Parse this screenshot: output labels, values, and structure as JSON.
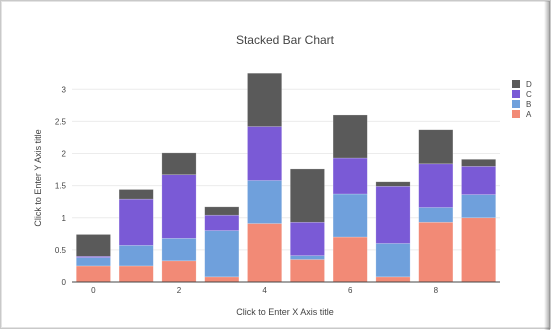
{
  "chart_data": {
    "type": "bar",
    "stacked": true,
    "title": "Stacked Bar Chart",
    "xlabel": "Click to Enter X Axis title",
    "ylabel": "Click to Enter Y Axis title",
    "x": [
      0,
      1,
      2,
      3,
      4,
      5,
      6,
      7,
      8,
      9
    ],
    "x_ticks": [
      0,
      2,
      4,
      6,
      8
    ],
    "y_ticks": [
      0,
      0.5,
      1,
      1.5,
      2,
      2.5,
      3
    ],
    "xlim": [
      -0.5,
      9.5
    ],
    "ylim": [
      0,
      3.3
    ],
    "grid": true,
    "legend": "top-right",
    "series": [
      {
        "name": "A",
        "color": "#f28a76",
        "values": [
          0.25,
          0.25,
          0.33,
          0.08,
          0.91,
          0.35,
          0.7,
          0.08,
          0.93,
          1.0
        ]
      },
      {
        "name": "B",
        "color": "#6fa0dc",
        "values": [
          0.13,
          0.32,
          0.35,
          0.72,
          0.67,
          0.06,
          0.67,
          0.52,
          0.23,
          0.36
        ]
      },
      {
        "name": "C",
        "color": "#7a5ad6",
        "values": [
          0.02,
          0.72,
          0.99,
          0.24,
          0.84,
          0.52,
          0.56,
          0.89,
          0.68,
          0.44
        ]
      },
      {
        "name": "D",
        "color": "#5a5a5a",
        "values": [
          0.34,
          0.15,
          0.34,
          0.13,
          0.83,
          0.83,
          0.67,
          0.07,
          0.53,
          0.11
        ]
      }
    ]
  }
}
